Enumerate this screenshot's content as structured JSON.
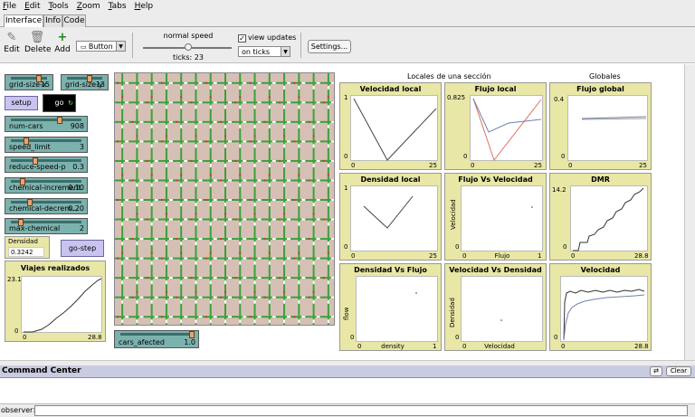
{
  "menu": [
    "File",
    "Edit",
    "Tools",
    "Zoom",
    "Tabs",
    "Help"
  ],
  "tabs": [
    "Interface",
    "Info",
    "Code"
  ],
  "toolbar": {
    "edit": "Edit",
    "delete": "Delete",
    "add": "Add",
    "widget_type": "Button",
    "speed_label": "normal speed",
    "ticks": "ticks: 23",
    "view_updates": "view updates",
    "update_mode": "on ticks",
    "settings": "Settings..."
  },
  "controls": {
    "grid_x": {
      "label": "grid-size-x",
      "value": "15"
    },
    "grid_y": {
      "label": "grid-size-y",
      "value": "13"
    },
    "setup": "setup",
    "go": "go",
    "num_cars": {
      "label": "num-cars",
      "value": "908"
    },
    "speed_limit": {
      "label": "speed_limit",
      "value": "3"
    },
    "reduce_speed": {
      "label": "reduce-speed-p",
      "value": "0.3"
    },
    "chem_inc": {
      "label": "chemical-increment",
      "value": "0.10"
    },
    "chem_dec": {
      "label": "chemical-decrem...",
      "value": "0.20"
    },
    "max_chem": {
      "label": "max-chemical",
      "value": "2"
    },
    "densidad": {
      "label": "Densidad",
      "value": "0.3242"
    },
    "go_step": "go-step",
    "cars_afected": {
      "label": "cars_afected",
      "value": "1.0"
    }
  },
  "sections": {
    "local": "Locales de una sección",
    "global": "Globales"
  },
  "plots": {
    "viajes": {
      "title": "Viajes realizados",
      "ymax": "23.1",
      "ymin": "0",
      "xmin": "0",
      "xmax": "28.8"
    },
    "vel_local": {
      "title": "Velocidad local",
      "ymax": "1",
      "ymin": "0",
      "xmin": "0",
      "xmax": "25"
    },
    "flujo_local": {
      "title": "Flujo local",
      "ymax": "0.825",
      "ymin": "0",
      "xmin": "0",
      "xmax": "25"
    },
    "flujo_global": {
      "title": "Flujo global",
      "ymax": "0.4",
      "ymin": "0",
      "xmin": "0",
      "xmax": "25"
    },
    "dens_local": {
      "title": "Densidad local",
      "ymax": "1",
      "ymin": "0",
      "xmin": "0",
      "xmax": "25"
    },
    "flujo_vel": {
      "title": "Flujo Vs Velocidad",
      "ymax": "",
      "ymin": "0",
      "xmin": "0",
      "xmax": "1",
      "xlabel": "Flujo",
      "ylabel": "Velocidad"
    },
    "dmr": {
      "title": "DMR",
      "ymax": "14.2",
      "ymin": "0",
      "xmin": "0",
      "xmax": "28.8"
    },
    "dens_flujo": {
      "title": "Densidad Vs Flujo",
      "ymax": "",
      "ymin": "0",
      "xmin": "0",
      "xmax": "1",
      "xlabel": "density",
      "ylabel": "flow"
    },
    "vel_dens": {
      "title": "Velocidad Vs Densidad",
      "ymax": "",
      "ymin": "0",
      "xmin": "0",
      "xmax": "",
      "xlabel": "Velocidad",
      "ylabel": "Densidad"
    },
    "velocidad": {
      "title": "Velocidad",
      "ymax": "",
      "ymin": "0",
      "xmin": "0",
      "xmax": "28.8"
    }
  },
  "command_center": {
    "title": "Command Center",
    "clear": "Clear",
    "prompt": "observer>"
  },
  "colors": {
    "slider": "#7cb2ae",
    "button": "#c9c4ef",
    "monitor": "#e8e7a6",
    "world": "#d6c0b6",
    "road_green": "#3aa13a",
    "road_white": "#ffffff",
    "road_red": "#e03030"
  }
}
